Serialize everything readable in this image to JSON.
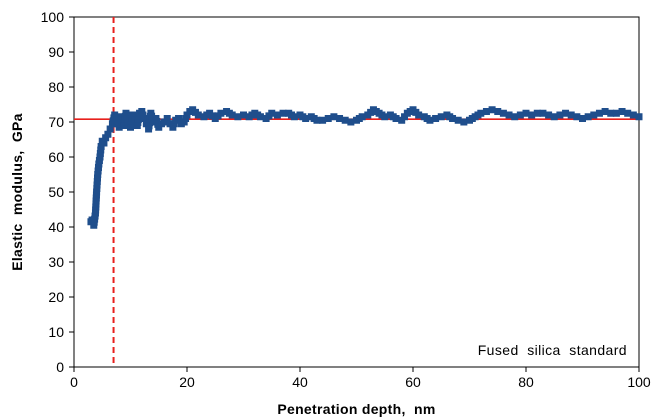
{
  "chart_data": {
    "type": "scatter",
    "title": "",
    "xlabel": "Penetration depth,  nm",
    "ylabel": "Elastic  modulus,  GPa",
    "annotation": "Fused  silica  standard",
    "xlim": [
      0,
      100
    ],
    "ylim": [
      0,
      100
    ],
    "x_ticks": [
      0,
      20,
      40,
      60,
      80,
      100
    ],
    "y_ticks": [
      0,
      10,
      20,
      30,
      40,
      50,
      60,
      70,
      80,
      90,
      100
    ],
    "grid": false,
    "legend": "none",
    "reference_lines": [
      {
        "orientation": "horizontal",
        "value": 70.8,
        "style": "solid",
        "color": "#e8201c"
      },
      {
        "orientation": "vertical",
        "value": 7.0,
        "style": "dashed",
        "color": "#e8201c"
      }
    ],
    "series": [
      {
        "marker_color": "#1f4e8c",
        "x": [
          3.0,
          3.2,
          3.5,
          3.8,
          4.0,
          4.2,
          4.4,
          4.6,
          4.8,
          5.0,
          5.3,
          5.6,
          6.0,
          6.4,
          6.8,
          7.2,
          7.6,
          8.0,
          8.4,
          8.8,
          9.2,
          9.6,
          10.0,
          10.4,
          10.8,
          11.2,
          11.6,
          12.0,
          12.4,
          12.8,
          13.2,
          13.6,
          14.0,
          14.5,
          15.0,
          15.5,
          16.0,
          16.5,
          17.0,
          17.5,
          18.0,
          18.5,
          19.0,
          19.5,
          20.0,
          20.5,
          21.0,
          22.0,
          23.0,
          24.0,
          25.0,
          26.0,
          27.0,
          28.0,
          29.0,
          30.0,
          31.0,
          32.0,
          33.0,
          34.0,
          35.0,
          36.0,
          37.0,
          38.0,
          39.0,
          40.0,
          41.0,
          42.0,
          43.0,
          44.0,
          45.0,
          46.0,
          47.0,
          48.0,
          49.0,
          50.0,
          51.0,
          52.0,
          53.0,
          54.0,
          55.0,
          56.0,
          57.0,
          58.0,
          59.0,
          60.0,
          61.0,
          62.0,
          63.0,
          64.0,
          65.0,
          66.0,
          67.0,
          68.0,
          69.0,
          70.0,
          71.0,
          72.0,
          73.0,
          74.0,
          75.0,
          76.0,
          77.0,
          78.0,
          79.0,
          80.0,
          81.0,
          82.0,
          83.0,
          84.0,
          85.0,
          86.0,
          87.0,
          88.0,
          89.0,
          90.0,
          91.0,
          92.0,
          93.0,
          94.0,
          95.0,
          96.0,
          97.0,
          98.0,
          99.0,
          100.0
        ],
        "y": [
          41.5,
          42.0,
          40.5,
          44.0,
          50.0,
          55.0,
          58.0,
          60.0,
          63.0,
          64.5,
          64.0,
          65.5,
          66.5,
          68.0,
          69.5,
          72.0,
          70.5,
          68.5,
          71.5,
          69.0,
          72.5,
          70.0,
          68.5,
          72.0,
          70.5,
          69.0,
          72.5,
          73.0,
          71.0,
          69.5,
          68.0,
          72.5,
          70.0,
          71.0,
          68.5,
          69.5,
          70.0,
          71.0,
          69.5,
          68.5,
          70.5,
          71.0,
          69.5,
          70.0,
          72.0,
          73.0,
          73.5,
          72.0,
          71.5,
          72.5,
          71.0,
          72.5,
          73.0,
          72.0,
          71.5,
          72.0,
          71.5,
          72.5,
          71.5,
          71.0,
          72.5,
          72.0,
          72.5,
          72.5,
          71.5,
          72.0,
          71.0,
          71.5,
          70.5,
          70.5,
          71.0,
          71.5,
          71.0,
          70.5,
          70.0,
          70.5,
          71.5,
          72.0,
          73.5,
          72.5,
          71.5,
          72.0,
          71.0,
          70.5,
          72.5,
          73.5,
          72.0,
          71.5,
          70.5,
          71.0,
          71.5,
          72.0,
          71.0,
          70.5,
          70.0,
          70.5,
          71.5,
          72.5,
          73.0,
          73.5,
          73.0,
          72.5,
          72.0,
          71.5,
          72.0,
          72.5,
          72.0,
          72.5,
          72.5,
          72.0,
          71.5,
          72.0,
          72.5,
          72.0,
          71.5,
          71.0,
          71.5,
          72.0,
          72.5,
          73.0,
          72.5,
          72.5,
          73.0,
          72.5,
          72.0,
          71.5
        ]
      }
    ]
  }
}
